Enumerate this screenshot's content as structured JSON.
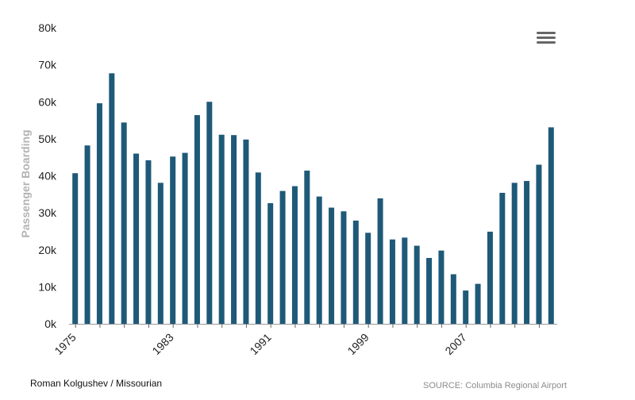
{
  "credit": "Roman Kolgushev / Missourian",
  "source": "SOURCE: Columbia Regional Airport",
  "icons": {
    "menu": "hamburger-menu-icon"
  },
  "colors": {
    "bar": "#1f5978",
    "axis": "#999999",
    "axis_title": "#b3b3b3"
  },
  "chart_data": {
    "type": "bar",
    "ylabel": "Passenger Boarding",
    "xlabel": "",
    "ylim": [
      0,
      80000
    ],
    "yticks": [
      0,
      10000,
      20000,
      30000,
      40000,
      50000,
      60000,
      70000,
      80000
    ],
    "ytick_labels": [
      "0k",
      "10k",
      "20k",
      "30k",
      "40k",
      "50k",
      "60k",
      "70k",
      "80k"
    ],
    "xtick_labels": [
      "1975",
      "1983",
      "1991",
      "1999",
      "2007"
    ],
    "categories": [
      1975,
      1976,
      1977,
      1978,
      1979,
      1980,
      1981,
      1982,
      1983,
      1984,
      1985,
      1986,
      1987,
      1988,
      1989,
      1990,
      1991,
      1992,
      1993,
      1994,
      1995,
      1996,
      1997,
      1998,
      1999,
      2000,
      2001,
      2002,
      2003,
      2004,
      2005,
      2006,
      2007,
      2008,
      2009,
      2010,
      2011,
      2012,
      2013,
      2014
    ],
    "values": [
      40700,
      48200,
      59600,
      67700,
      54400,
      46000,
      44200,
      38100,
      45200,
      46200,
      56400,
      60000,
      51100,
      51000,
      49800,
      40900,
      32600,
      35900,
      37200,
      41400,
      34400,
      31400,
      30400,
      27900,
      24600,
      33900,
      22800,
      23300,
      21100,
      17800,
      19800,
      13400,
      9000,
      10800,
      24900,
      35400,
      38100,
      38600,
      43000,
      53100
    ],
    "grid": false,
    "legend": "none"
  }
}
